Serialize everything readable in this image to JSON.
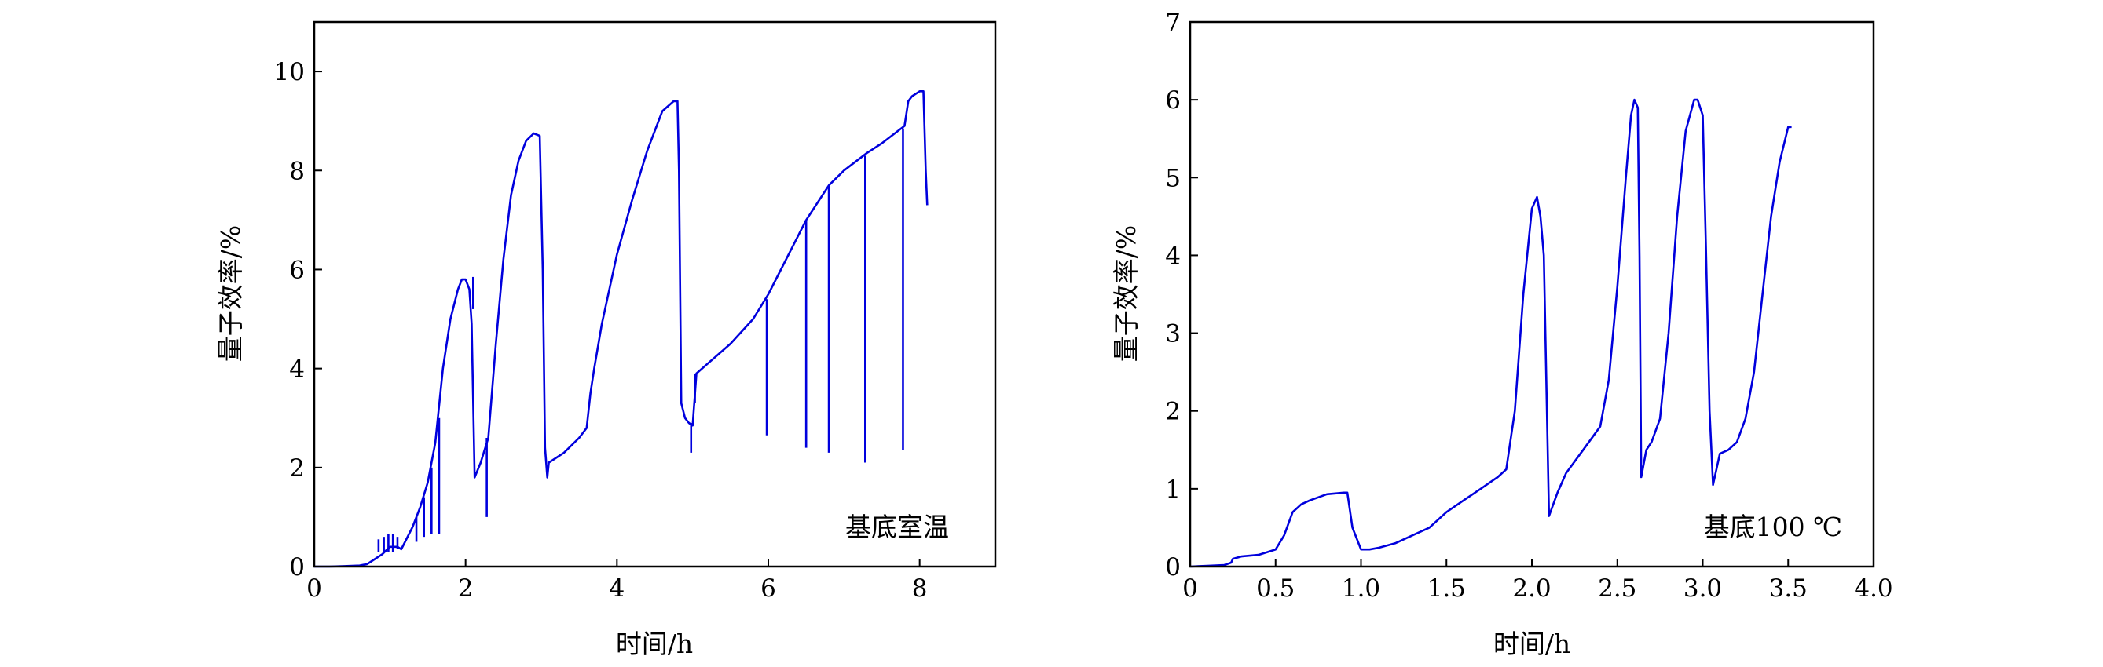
{
  "chart_data": [
    {
      "type": "line",
      "title": "",
      "xlabel": "时间/h",
      "ylabel": "量子效率/%",
      "xlim": [
        0,
        9
      ],
      "ylim": [
        0,
        11
      ],
      "xticks": [
        0,
        2,
        4,
        6,
        8
      ],
      "xtick_labels": [
        "0",
        "2",
        "4",
        "6",
        "8"
      ],
      "yticks": [
        0,
        2,
        4,
        6,
        8,
        10
      ],
      "ytick_labels": [
        "0",
        "2",
        "4",
        "6",
        "8",
        "10"
      ],
      "annotation": "基底室温",
      "grid": false,
      "legend": "none",
      "line_color": "#0000dd",
      "series": [
        {
          "x": [
            0,
            0.2,
            0.4,
            0.6,
            0.7,
            0.8,
            0.9,
            1.0,
            1.1,
            1.15,
            1.2,
            1.3,
            1.4,
            1.5,
            1.6,
            1.7,
            1.8,
            1.9,
            1.95,
            2.0,
            2.05,
            2.08,
            2.12,
            2.2,
            2.3,
            2.4,
            2.5,
            2.6,
            2.7,
            2.8,
            2.9,
            2.98,
            3.02,
            3.05,
            3.08,
            3.1,
            3.15,
            3.3,
            3.5,
            3.6,
            3.65,
            3.7,
            3.8,
            4.0,
            4.2,
            4.4,
            4.6,
            4.75,
            4.8,
            4.82,
            4.85,
            4.9,
            4.95,
            5.0,
            5.05,
            5.2,
            5.5,
            5.8,
            6.0,
            6.2,
            6.5,
            6.8,
            7.0,
            7.3,
            7.5,
            7.8,
            7.85,
            7.9,
            8.0,
            8.05,
            8.08,
            8.1
          ],
          "y": [
            0,
            0,
            0.01,
            0.02,
            0.05,
            0.15,
            0.25,
            0.4,
            0.4,
            0.35,
            0.5,
            0.8,
            1.2,
            1.7,
            2.5,
            4.0,
            5.0,
            5.6,
            5.8,
            5.8,
            5.6,
            4.9,
            1.8,
            2.1,
            2.6,
            4.5,
            6.2,
            7.5,
            8.2,
            8.6,
            8.75,
            8.7,
            6.0,
            2.4,
            1.8,
            2.1,
            2.15,
            2.3,
            2.6,
            2.8,
            3.5,
            4.0,
            4.9,
            6.3,
            7.4,
            8.4,
            9.2,
            9.4,
            9.4,
            8.0,
            3.3,
            3.0,
            2.9,
            2.85,
            3.9,
            4.1,
            4.5,
            5.0,
            5.5,
            6.1,
            7.0,
            7.7,
            8.0,
            8.35,
            8.55,
            8.9,
            9.4,
            9.5,
            9.6,
            9.6,
            8.0,
            7.3
          ]
        }
      ],
      "spikes": [
        {
          "x": 0.85,
          "y_from": 0.3,
          "y_to": 0.55
        },
        {
          "x": 0.92,
          "y_from": 0.3,
          "y_to": 0.6
        },
        {
          "x": 0.98,
          "y_from": 0.3,
          "y_to": 0.65
        },
        {
          "x": 1.04,
          "y_from": 0.3,
          "y_to": 0.65
        },
        {
          "x": 1.1,
          "y_from": 0.35,
          "y_to": 0.6
        },
        {
          "x": 1.35,
          "y_from": 1.0,
          "y_to": 0.5
        },
        {
          "x": 1.45,
          "y_from": 1.4,
          "y_to": 0.6
        },
        {
          "x": 1.55,
          "y_from": 2.0,
          "y_to": 0.65
        },
        {
          "x": 1.65,
          "y_from": 3.0,
          "y_to": 0.65
        },
        {
          "x": 2.1,
          "y_from": 5.2,
          "y_to": 5.85
        },
        {
          "x": 2.28,
          "y_from": 2.6,
          "y_to": 1.0
        },
        {
          "x": 4.98,
          "y_from": 2.9,
          "y_to": 2.3
        },
        {
          "x": 5.03,
          "y_from": 3.9,
          "y_to": 3.3
        },
        {
          "x": 5.98,
          "y_from": 5.4,
          "y_to": 2.65
        },
        {
          "x": 6.5,
          "y_from": 7.0,
          "y_to": 2.4
        },
        {
          "x": 6.8,
          "y_from": 7.7,
          "y_to": 2.3
        },
        {
          "x": 7.28,
          "y_from": 8.3,
          "y_to": 2.1
        },
        {
          "x": 7.78,
          "y_from": 8.85,
          "y_to": 2.35
        }
      ]
    },
    {
      "type": "line",
      "title": "",
      "xlabel": "时间/h",
      "ylabel": "量子效率/%",
      "xlim": [
        0,
        4.0
      ],
      "ylim": [
        0,
        7
      ],
      "xticks": [
        0,
        0.5,
        1.0,
        1.5,
        2.0,
        2.5,
        3.0,
        3.5,
        4.0
      ],
      "xtick_labels": [
        "0",
        "0.5",
        "1.0",
        "1.5",
        "2.0",
        "2.5",
        "3.0",
        "3.5",
        "4.0"
      ],
      "yticks": [
        0,
        1,
        2,
        3,
        4,
        5,
        6,
        7
      ],
      "ytick_labels": [
        "0",
        "1",
        "2",
        "3",
        "4",
        "5",
        "6",
        "7"
      ],
      "annotation": "基底100 ℃",
      "grid": false,
      "legend": "none",
      "line_color": "#0000dd",
      "series": [
        {
          "x": [
            0,
            0.1,
            0.2,
            0.24,
            0.25,
            0.3,
            0.4,
            0.5,
            0.55,
            0.6,
            0.65,
            0.7,
            0.8,
            0.9,
            0.92,
            0.95,
            1.0,
            1.05,
            1.1,
            1.2,
            1.3,
            1.4,
            1.5,
            1.6,
            1.7,
            1.8,
            1.85,
            1.88,
            1.9,
            1.95,
            2.0,
            2.03,
            2.05,
            2.07,
            2.1,
            2.15,
            2.2,
            2.3,
            2.4,
            2.45,
            2.5,
            2.55,
            2.58,
            2.6,
            2.62,
            2.63,
            2.64,
            2.67,
            2.7,
            2.75,
            2.8,
            2.85,
            2.9,
            2.95,
            2.97,
            3.0,
            3.02,
            3.04,
            3.06,
            3.1,
            3.15,
            3.2,
            3.25,
            3.3,
            3.35,
            3.4,
            3.45,
            3.5,
            3.52
          ],
          "y": [
            0,
            0.01,
            0.02,
            0.05,
            0.1,
            0.13,
            0.15,
            0.22,
            0.4,
            0.7,
            0.8,
            0.85,
            0.93,
            0.95,
            0.95,
            0.5,
            0.22,
            0.22,
            0.24,
            0.3,
            0.4,
            0.5,
            0.7,
            0.85,
            1.0,
            1.15,
            1.25,
            1.7,
            2.0,
            3.5,
            4.6,
            4.75,
            4.5,
            4.0,
            0.65,
            0.95,
            1.2,
            1.5,
            1.8,
            2.4,
            3.6,
            5.0,
            5.8,
            6.0,
            5.9,
            4.0,
            1.15,
            1.5,
            1.6,
            1.9,
            3.0,
            4.5,
            5.6,
            6.0,
            6.0,
            5.8,
            4.0,
            2.0,
            1.05,
            1.45,
            1.5,
            1.6,
            1.9,
            2.5,
            3.5,
            4.5,
            5.2,
            5.65,
            5.65
          ]
        }
      ]
    }
  ]
}
